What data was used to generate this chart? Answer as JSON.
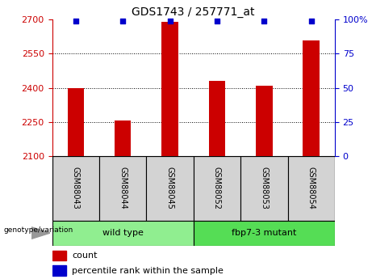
{
  "title": "GDS1743 / 257771_at",
  "samples": [
    "GSM88043",
    "GSM88044",
    "GSM88045",
    "GSM88052",
    "GSM88053",
    "GSM88054"
  ],
  "counts": [
    2400,
    2258,
    2690,
    2430,
    2410,
    2610
  ],
  "percentiles": [
    99,
    99,
    99,
    99,
    99,
    99
  ],
  "ylim_left": [
    2100,
    2700
  ],
  "ylim_right": [
    0,
    100
  ],
  "yticks_left": [
    2100,
    2250,
    2400,
    2550,
    2700
  ],
  "yticks_right": [
    0,
    25,
    50,
    75,
    100
  ],
  "bar_color": "#cc0000",
  "dot_color": "#0000cc",
  "groups": [
    {
      "label": "wild type",
      "indices": [
        0,
        1,
        2
      ],
      "color": "#90ee90"
    },
    {
      "label": "fbp7-3 mutant",
      "indices": [
        3,
        4,
        5
      ],
      "color": "#55dd55"
    }
  ],
  "genotype_label": "genotype/variation",
  "legend_count_label": "count",
  "legend_percentile_label": "percentile rank within the sample",
  "left_tick_color": "#cc0000",
  "right_tick_color": "#0000cc",
  "grid_color": "black",
  "sample_box_color": "#d3d3d3",
  "bar_width": 0.35
}
